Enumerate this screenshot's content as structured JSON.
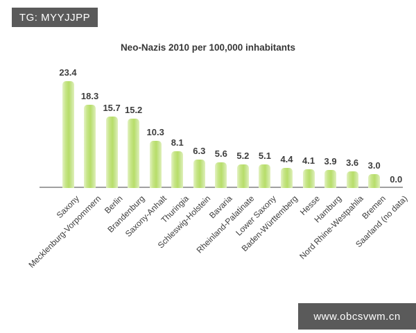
{
  "watermarks": {
    "top": "TG: MYYJJPP",
    "bottom": "www.obcsvwm.cn"
  },
  "colors": {
    "banner_bg": "#5a5a5a",
    "banner_text": "#ffffff",
    "bar_main": "#b7dd6a",
    "bar_edge_light": "#e4f2c4",
    "axis_line": "#a0a0a0",
    "text": "#3d3d3d",
    "background": "#ffffff"
  },
  "chart_data": {
    "type": "bar",
    "title": "Neo-Nazis 2010 per 100,000 inhabitants",
    "categories": [
      "Saxony",
      "Mecklenburg-Vorpommern",
      "Berlin",
      "Brandenburg",
      "Saxony-Anhalt",
      "Thuringia",
      "Schleswig-Holstein",
      "Bavaria",
      "Rheinland-Palatinate",
      "Lower Saxony",
      "Baden-Württemberg",
      "Hesse",
      "Hamburg",
      "Nord Rhine-Westpahlia",
      "Bremen",
      "Saarland (no data)"
    ],
    "values": [
      23.4,
      18.3,
      15.7,
      15.2,
      10.3,
      8.1,
      6.3,
      5.6,
      5.2,
      5.1,
      4.4,
      4.1,
      3.9,
      3.6,
      3.0,
      0.0
    ],
    "xlabel": "",
    "ylabel": "",
    "ylim": [
      0,
      25
    ],
    "grid": false,
    "legend": false,
    "value_labels_shown": true,
    "x_tick_rotation_deg": -45
  }
}
